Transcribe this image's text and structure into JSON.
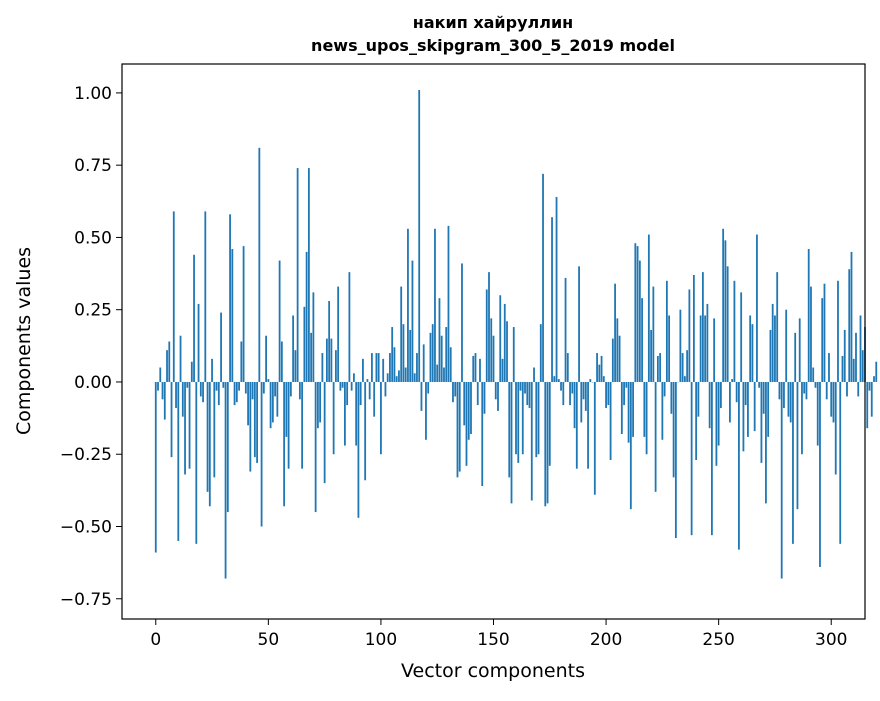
{
  "chart_data": {
    "type": "bar",
    "title_line1": "накип хайруллин",
    "title_line2": "news_upos_skipgram_300_5_2019 model",
    "xlabel": "Vector components",
    "ylabel": "Components values",
    "xlim": [
      -15,
      315
    ],
    "ylim": [
      -0.82,
      1.1
    ],
    "x_ticks": [
      0,
      50,
      100,
      150,
      200,
      250,
      300
    ],
    "x_tick_labels": [
      "0",
      "50",
      "100",
      "150",
      "200",
      "250",
      "300"
    ],
    "y_ticks": [
      -0.75,
      -0.5,
      -0.25,
      0.0,
      0.25,
      0.5,
      0.75,
      1.0
    ],
    "y_tick_labels": [
      "−0.75",
      "−0.50",
      "−0.25",
      "0.00",
      "0.25",
      "0.50",
      "0.75",
      "1.00"
    ],
    "bar_color": "#1f77b4",
    "grid": false,
    "legend": "none",
    "values": [
      -0.59,
      -0.03,
      0.05,
      -0.06,
      -0.13,
      0.11,
      0.14,
      -0.26,
      0.59,
      -0.09,
      -0.55,
      0.16,
      -0.12,
      -0.32,
      -0.02,
      -0.3,
      0.07,
      0.44,
      -0.56,
      0.27,
      -0.05,
      -0.07,
      0.59,
      -0.38,
      -0.43,
      0.08,
      -0.33,
      -0.03,
      -0.08,
      0.24,
      -0.02,
      -0.68,
      -0.45,
      0.58,
      0.46,
      -0.08,
      -0.07,
      -0.03,
      0.14,
      0.47,
      -0.04,
      -0.15,
      -0.31,
      -0.06,
      -0.26,
      -0.28,
      0.81,
      -0.5,
      -0.04,
      0.16,
      0.01,
      -0.16,
      -0.14,
      -0.05,
      -0.12,
      0.42,
      0.14,
      -0.43,
      -0.19,
      -0.3,
      -0.05,
      0.23,
      0.11,
      0.74,
      -0.06,
      -0.3,
      0.26,
      0.45,
      0.74,
      0.17,
      0.31,
      -0.45,
      -0.16,
      -0.14,
      0.1,
      -0.35,
      0.15,
      0.28,
      0.15,
      -0.25,
      0.11,
      0.33,
      -0.03,
      -0.02,
      -0.22,
      -0.08,
      0.38,
      -0.03,
      0.03,
      -0.22,
      -0.47,
      -0.08,
      0.08,
      -0.34,
      0.01,
      -0.06,
      0.1,
      -0.12,
      0.1,
      0.1,
      -0.25,
      0.08,
      -0.05,
      0.03,
      0.1,
      0.19,
      0.12,
      0.02,
      0.04,
      0.33,
      0.2,
      0.05,
      0.53,
      0.18,
      0.42,
      0.03,
      0.1,
      1.01,
      -0.1,
      0.13,
      -0.2,
      -0.04,
      0.17,
      0.2,
      0.53,
      0.06,
      0.29,
      0.16,
      0.05,
      0.19,
      0.54,
      0.12,
      -0.07,
      -0.05,
      -0.33,
      -0.31,
      0.41,
      -0.15,
      -0.29,
      -0.2,
      -0.18,
      0.09,
      0.1,
      -0.08,
      0.08,
      -0.36,
      -0.11,
      0.32,
      0.38,
      0.22,
      0.16,
      -0.06,
      -0.1,
      0.3,
      0.08,
      0.27,
      0.21,
      -0.33,
      -0.42,
      0.19,
      -0.25,
      -0.28,
      -0.03,
      -0.25,
      -0.04,
      -0.08,
      -0.09,
      -0.41,
      0.05,
      -0.26,
      -0.25,
      0.2,
      0.72,
      -0.43,
      -0.42,
      -0.29,
      0.57,
      0.02,
      0.64,
      0.01,
      -0.03,
      -0.08,
      0.36,
      0.1,
      -0.08,
      -0.04,
      -0.16,
      -0.3,
      0.4,
      -0.14,
      -0.06,
      -0.1,
      -0.3,
      0.01,
      0.0,
      -0.39,
      0.1,
      0.06,
      0.09,
      0.02,
      -0.09,
      -0.08,
      -0.27,
      0.15,
      0.34,
      0.22,
      0.16,
      -0.18,
      -0.08,
      -0.02,
      -0.21,
      -0.44,
      -0.19,
      0.48,
      0.47,
      0.42,
      0.29,
      -0.19,
      -0.25,
      0.51,
      0.18,
      0.33,
      -0.38,
      0.09,
      0.1,
      -0.2,
      -0.05,
      0.35,
      0.23,
      -0.11,
      -0.33,
      -0.54,
      0.0,
      0.25,
      0.1,
      0.02,
      0.11,
      0.32,
      -0.53,
      0.37,
      -0.27,
      -0.12,
      0.23,
      0.38,
      0.23,
      0.27,
      -0.16,
      -0.53,
      0.22,
      -0.29,
      -0.22,
      -0.09,
      0.53,
      0.49,
      0.4,
      -0.14,
      0.01,
      0.35,
      -0.07,
      -0.58,
      0.31,
      -0.24,
      -0.08,
      -0.19,
      0.23,
      0.2,
      -0.17,
      0.51,
      -0.02,
      -0.28,
      -0.11,
      -0.42,
      -0.19,
      0.18,
      0.27,
      0.23,
      0.38,
      -0.06,
      -0.68,
      -0.09,
      0.25,
      -0.12,
      -0.14,
      -0.56,
      0.17,
      -0.44,
      0.22,
      -0.25,
      -0.04,
      -0.06,
      0.46,
      0.33,
      0.05,
      -0.02,
      -0.22,
      -0.64,
      0.29,
      0.34,
      -0.06,
      0.1,
      -0.12,
      -0.14,
      -0.32,
      0.35,
      -0.56,
      0.09,
      0.18,
      -0.05,
      0.39,
      0.45,
      0.08,
      0.17,
      -0.05,
      0.23,
      0.11,
      0.19,
      -0.16,
      -0.03,
      -0.12,
      0.02,
      0.07
    ]
  }
}
